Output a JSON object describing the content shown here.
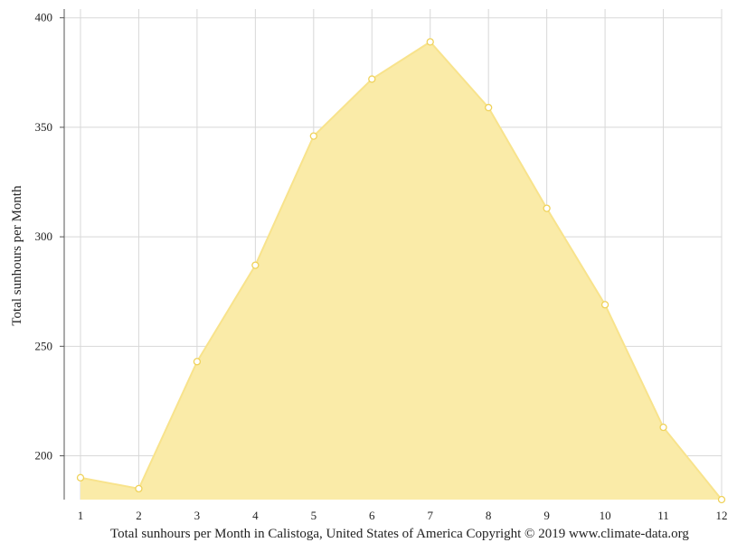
{
  "chart_data": {
    "type": "area",
    "x": [
      1,
      2,
      3,
      4,
      5,
      6,
      7,
      8,
      9,
      10,
      11,
      12
    ],
    "series": [
      {
        "values": [
          190,
          185,
          243,
          287,
          346,
          372,
          389,
          359,
          313,
          269,
          213,
          180
        ]
      }
    ],
    "ylabel": "Total sunhours per Month",
    "xlabel": "Total sunhours per Month in Calistoga, United States of America Copyright © 2019 www.climate-data.org",
    "ylim": [
      180,
      404
    ],
    "yticks": [
      200,
      250,
      300,
      350,
      400
    ],
    "xticks": [
      1,
      2,
      3,
      4,
      5,
      6,
      7,
      8,
      9,
      10,
      11,
      12
    ],
    "grid": true,
    "colors": {
      "fill": "#faeba8",
      "line": "#f8e38c",
      "marker_fill": "#ffffff",
      "marker_stroke": "#efd25a",
      "grid": "#d8d8d8",
      "axis": "#555555"
    }
  }
}
